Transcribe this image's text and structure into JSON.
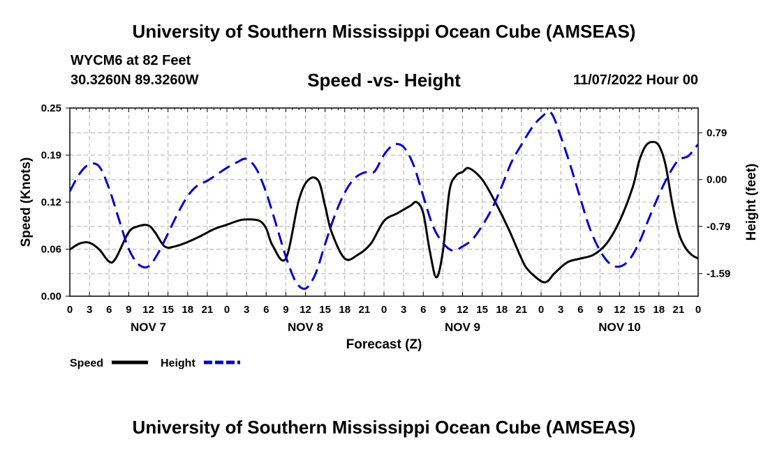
{
  "header": {
    "main_title": "University of Southern Mississippi Ocean Cube (AMSEAS)",
    "station": "WYCM6 at 82 Feet",
    "coords": "30.3260N  89.3260W",
    "chart_title": "Speed -vs- Height",
    "datetime": "11/07/2022 Hour 00",
    "footer_title": "University of Southern Mississippi Ocean Cube (AMSEAS)"
  },
  "chart_data": {
    "type": "line",
    "title": "Speed -vs- Height",
    "xlabel": "Forecast (Z)",
    "ylabel": "Speed (Knots)",
    "y2label": "Height (feet)",
    "ylim": [
      0,
      0.25
    ],
    "y2lim": [
      -1.97,
      1.21
    ],
    "grid": true,
    "xlim": [
      0,
      96
    ],
    "x_tick_labels": [
      "0",
      "3",
      "6",
      "9",
      "12",
      "15",
      "18",
      "21",
      "0",
      "3",
      "6",
      "9",
      "12",
      "15",
      "18",
      "21",
      "0",
      "3",
      "6",
      "9",
      "12",
      "15",
      "18",
      "21",
      "0",
      "3",
      "6",
      "9",
      "12",
      "15",
      "18",
      "21",
      "0"
    ],
    "y_tick_labels": [
      "0.00",
      "0.06",
      "0.12",
      "0.19",
      "0.25"
    ],
    "y_tick_values": [
      0,
      0.0625,
      0.125,
      0.1875,
      0.25
    ],
    "y2_tick_labels": [
      "0.79",
      "0.00",
      "-0.79",
      "-1.59"
    ],
    "y2_tick_values": [
      0.79,
      0.0,
      -0.79,
      -1.59
    ],
    "day_labels": [
      {
        "label": "NOV 7",
        "hour": 12
      },
      {
        "label": "NOV 8",
        "hour": 36
      },
      {
        "label": "NOV 9",
        "hour": 60
      },
      {
        "label": "NOV 10",
        "hour": 84
      }
    ],
    "legend": {
      "speed": "Speed",
      "height": "Height"
    },
    "series": [
      {
        "name": "Speed",
        "axis": "left",
        "color": "#000000",
        "dash": "solid",
        "x": [
          0,
          1.5,
          3,
          4.5,
          6,
          7,
          9,
          10.5,
          12,
          13,
          14.5,
          16,
          18,
          20,
          22,
          24,
          26,
          27.5,
          29,
          30,
          31,
          33,
          35,
          36.5,
          38,
          39,
          40,
          42,
          44,
          46,
          48,
          50,
          52,
          53,
          54,
          55,
          56,
          57,
          58,
          59,
          60,
          61,
          63,
          65,
          67,
          69,
          70,
          72,
          73,
          74,
          76,
          78,
          80,
          82,
          84,
          86,
          87,
          88,
          89,
          90,
          91,
          92,
          93,
          94,
          95,
          96
        ],
        "values": [
          0.062,
          0.07,
          0.071,
          0.062,
          0.046,
          0.05,
          0.085,
          0.093,
          0.094,
          0.085,
          0.066,
          0.066,
          0.072,
          0.08,
          0.089,
          0.095,
          0.101,
          0.102,
          0.1,
          0.09,
          0.067,
          0.05,
          0.128,
          0.155,
          0.153,
          0.12,
          0.085,
          0.05,
          0.055,
          0.07,
          0.1,
          0.11,
          0.12,
          0.125,
          0.11,
          0.06,
          0.025,
          0.06,
          0.14,
          0.16,
          0.165,
          0.17,
          0.155,
          0.125,
          0.09,
          0.05,
          0.035,
          0.02,
          0.02,
          0.03,
          0.045,
          0.05,
          0.055,
          0.07,
          0.1,
          0.145,
          0.18,
          0.2,
          0.205,
          0.2,
          0.175,
          0.125,
          0.085,
          0.065,
          0.055,
          0.05
        ]
      },
      {
        "name": "Height",
        "axis": "right",
        "color": "#0000cc",
        "dash": "dashed",
        "x": [
          0,
          1.5,
          3,
          4.5,
          6,
          7.5,
          9,
          10.5,
          12,
          13.5,
          15,
          16.5,
          18,
          19.5,
          21,
          22.5,
          24,
          25.5,
          27,
          28.5,
          30,
          31.5,
          33,
          34.5,
          36,
          37.5,
          39,
          40.5,
          42,
          43.5,
          45,
          46.5,
          48,
          49.5,
          51,
          52.5,
          54,
          55.5,
          57,
          58.5,
          60,
          61.5,
          63,
          64.5,
          66,
          67.5,
          69,
          70.5,
          72,
          73.5,
          75,
          76.5,
          78,
          79.5,
          81,
          82.5,
          84,
          85.5,
          87,
          88.5,
          90,
          91.5,
          93,
          94.5,
          96
        ],
        "values": [
          -0.2,
          0.1,
          0.26,
          0.22,
          -0.15,
          -0.67,
          -1.17,
          -1.43,
          -1.47,
          -1.24,
          -0.91,
          -0.57,
          -0.28,
          -0.1,
          -0.02,
          0.09,
          0.2,
          0.29,
          0.35,
          0.18,
          -0.22,
          -0.75,
          -1.3,
          -1.72,
          -1.84,
          -1.6,
          -1.09,
          -0.6,
          -0.22,
          0.02,
          0.12,
          0.13,
          0.42,
          0.59,
          0.55,
          0.25,
          -0.28,
          -0.79,
          -1.07,
          -1.2,
          -1.13,
          -1.01,
          -0.78,
          -0.49,
          -0.11,
          0.3,
          0.59,
          0.86,
          1.05,
          1.13,
          0.73,
          0.23,
          -0.32,
          -0.84,
          -1.2,
          -1.42,
          -1.47,
          -1.35,
          -1.06,
          -0.65,
          -0.26,
          0.08,
          0.33,
          0.4,
          0.6
        ]
      }
    ]
  }
}
